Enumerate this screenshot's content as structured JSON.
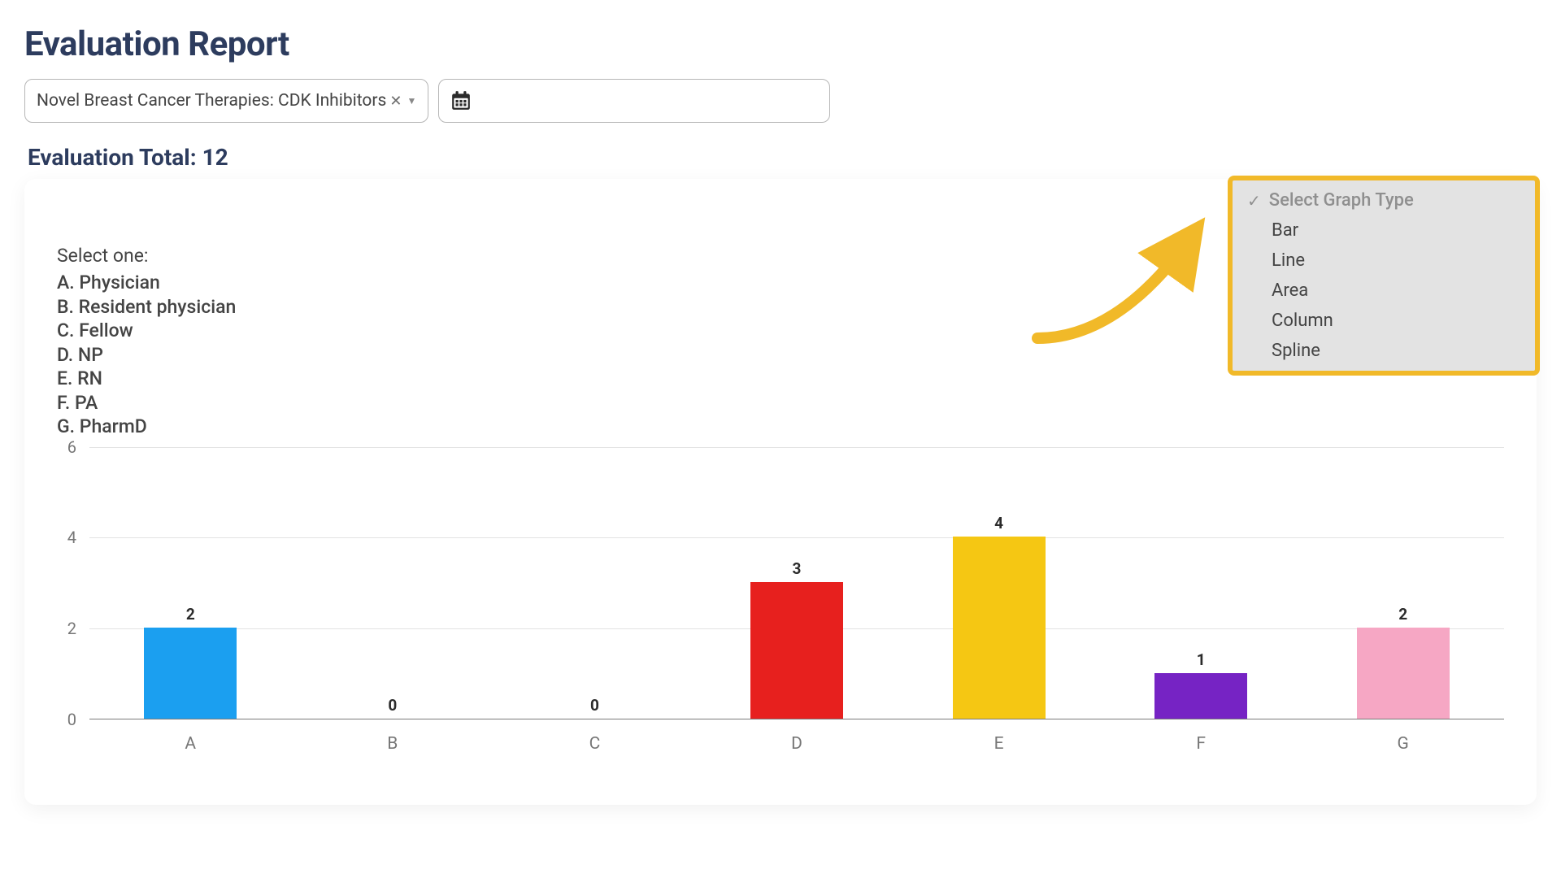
{
  "title": "Evaluation Report",
  "courseSelect": {
    "value": "Novel Breast Cancer Therapies: CDK Inhibitors"
  },
  "evalTotal": {
    "label": "Evaluation Total:",
    "value": "12"
  },
  "graphTypeMenu": {
    "header": "Select Graph Type",
    "options": [
      "Bar",
      "Line",
      "Area",
      "Column",
      "Spline"
    ],
    "highlightColor": "#f1b929",
    "panelBg": "#e3e3e3",
    "headerColor": "#8f8f8f",
    "itemColor": "#444444"
  },
  "question": {
    "prompt": "Select one:",
    "legend": [
      "A. Physician",
      "B. Resident physician",
      "C. Fellow",
      "D. NP",
      "E. RN",
      "F. PA",
      "G. PharmD"
    ]
  },
  "chart": {
    "type": "bar",
    "categories": [
      "A",
      "B",
      "C",
      "D",
      "E",
      "F",
      "G"
    ],
    "values": [
      2,
      0,
      0,
      3,
      4,
      1,
      2
    ],
    "barColors": [
      "#1b9ff0",
      "#1b9ff0",
      "#1b9ff0",
      "#e7201e",
      "#f5c713",
      "#7623c4",
      "#f6a7c4"
    ],
    "ymin": 0,
    "ymax": 6,
    "ytickStep": 2,
    "gridColor": "#e3e3e3",
    "axisColor": "#7a7a7a",
    "labelColor": "#777777",
    "valueLabelColor": "#2b2b2b",
    "barWidthPx": 114,
    "plotHeightPx": 335,
    "labelFontSize": 21,
    "valueFontSize": 19,
    "valueFontWeight": 700
  },
  "arrow": {
    "color": "#f1b929",
    "strokeWidth": 14
  }
}
